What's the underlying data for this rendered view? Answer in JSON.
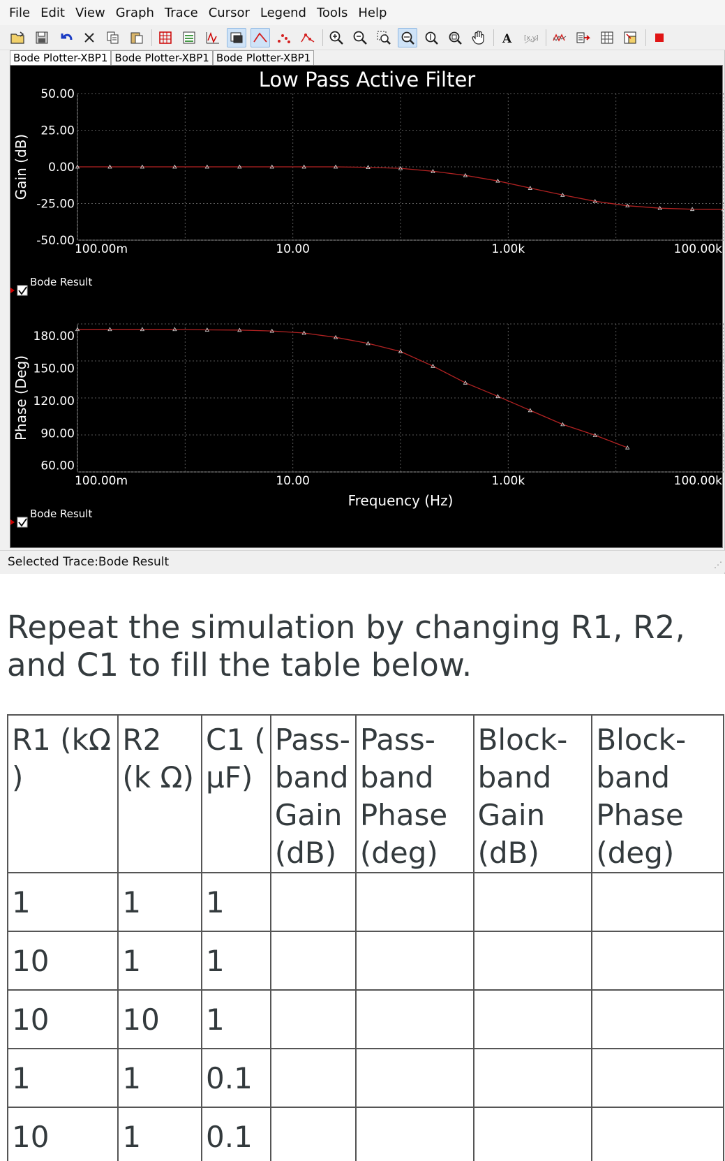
{
  "menu": [
    "File",
    "Edit",
    "View",
    "Graph",
    "Trace",
    "Cursor",
    "Legend",
    "Tools",
    "Help"
  ],
  "toolbar": {
    "icons": [
      "open-folder-icon",
      "save-icon",
      "undo-icon",
      "delete-icon",
      "copy-icon",
      "paste-icon",
      "grid-icon",
      "legend-toggle-icon",
      "overlay-traces-icon",
      "select-marks-icon",
      "line-icon",
      "scatter-icon",
      "line-markers-icon",
      "zoom-in-icon",
      "zoom-out-icon",
      "zoom-area-icon",
      "zoom-x-icon",
      "zoom-y-icon",
      "zoom-full-icon",
      "pan-hand-icon",
      "text-label-icon",
      "export-data-icon",
      "trace-properties-icon",
      "transfer-icon",
      "page-properties-icon",
      "export-image-icon",
      "stop-icon"
    ]
  },
  "tabs": [
    "Bode Plotter-XBP1",
    "Bode Plotter-XBP1",
    "Bode Plotter-XBP1"
  ],
  "chart_data": [
    {
      "type": "line",
      "title": "Low Pass Active Filter",
      "ylabel": "Gain (dB)",
      "xlabel": "",
      "x_scale": "log",
      "x_ticks": [
        "100.00m",
        "10.00",
        "1.00k",
        "100.00k"
      ],
      "y_ticks": [
        "50.00",
        "25.00",
        "0.00",
        "-25.00",
        "-50.00"
      ],
      "ylim": [
        -50,
        50
      ],
      "xlim": [
        0.1,
        100000
      ],
      "grid": true,
      "legend": "Bode Result",
      "series": [
        {
          "name": "Bode Result",
          "color": "#b22222",
          "x": [
            0.1,
            0.2,
            0.4,
            0.8,
            1.6,
            3.2,
            6.4,
            12.7,
            25,
            50,
            100,
            200,
            400,
            800,
            1600,
            3200,
            6400,
            12800,
            25600,
            51200,
            100000
          ],
          "y": [
            0,
            0,
            0,
            0,
            0,
            0,
            0,
            0,
            0,
            -0.3,
            -1,
            -3,
            -5.8,
            -9.6,
            -14.5,
            -19.2,
            -23.5,
            -26.5,
            -28.2,
            -28.9,
            -29
          ]
        }
      ]
    },
    {
      "type": "line",
      "title": "",
      "ylabel": "Phase (Deg)",
      "xlabel": "Frequency (Hz)",
      "x_scale": "log",
      "x_ticks": [
        "100.00m",
        "10.00",
        "1.00k",
        "100.00k"
      ],
      "y_ticks": [
        "180.00",
        "150.00",
        "120.00",
        "90.00",
        "60.00"
      ],
      "ylim": [
        54,
        191
      ],
      "xlim": [
        0.1,
        100000
      ],
      "grid": true,
      "legend": "Bode Result",
      "series": [
        {
          "name": "Bode Result",
          "color": "#b22222",
          "x": [
            0.1,
            0.2,
            0.4,
            0.8,
            1.6,
            3.2,
            6.4,
            12.7,
            25,
            50,
            100,
            200,
            400,
            800,
            1600,
            3200,
            6400,
            12800
          ],
          "y": [
            186,
            186,
            186,
            186,
            185.5,
            185.3,
            184.5,
            182.6,
            178.6,
            173,
            165.5,
            152,
            136.5,
            124,
            111,
            98,
            88,
            76.5
          ]
        }
      ]
    }
  ],
  "status_text": "Selected Trace:Bode Result",
  "instruction": "Repeat the simulation by changing R1, R2, and C1 to fill the table below.",
  "table": {
    "headers": [
      "R1 (kΩ )",
      "R2 (k Ω)",
      "C1 ( μF)",
      "Pass-band Gain (dB)",
      "Pass-band Phase (deg)",
      "Block-band Gain (dB)",
      "Block-band Phase (deg)"
    ],
    "rows": [
      [
        "1",
        "1",
        "1",
        "",
        "",
        "",
        ""
      ],
      [
        "10",
        "1",
        "1",
        "",
        "",
        "",
        ""
      ],
      [
        "10",
        "10",
        "1",
        "",
        "",
        "",
        ""
      ],
      [
        "1",
        "1",
        "0.1",
        "",
        "",
        "",
        ""
      ],
      [
        "10",
        "1",
        "0.1",
        "",
        "",
        "",
        ""
      ]
    ]
  }
}
